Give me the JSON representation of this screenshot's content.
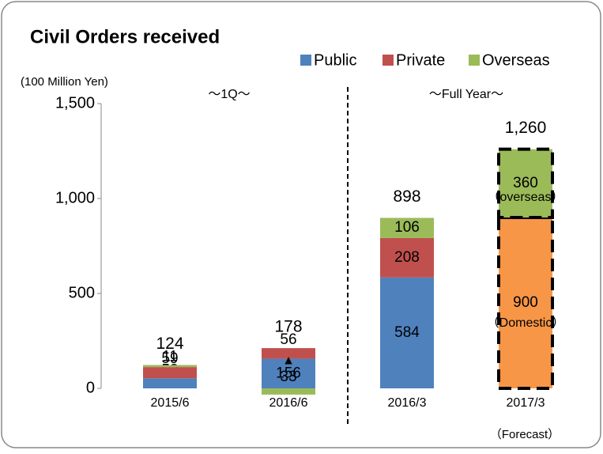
{
  "chart_data": {
    "type": "bar",
    "title": "Civil Orders received",
    "y_label": "(100 Million Yen)",
    "categories": [
      "2015/6",
      "2016/6",
      "2016/3",
      "2017/3"
    ],
    "series": [
      {
        "name": "Public",
        "color": "#4f81bd",
        "values": [
          53,
          156,
          584,
          null
        ],
        "value_labels": [
          "53",
          "156",
          "584",
          null
        ]
      },
      {
        "name": "Private",
        "color": "#c0504d",
        "values": [
          59,
          56,
          208,
          null
        ],
        "value_labels": [
          "59",
          "56",
          "208",
          null
        ]
      },
      {
        "name": "Overseas",
        "color": "#9bbb59",
        "values": [
          11,
          -33,
          106,
          360
        ],
        "value_labels": [
          "11",
          "33",
          "106",
          "360"
        ]
      }
    ],
    "domestic": {
      "color": "#f79646",
      "values": [
        null,
        null,
        null,
        900
      ],
      "value_labels": [
        null,
        null,
        null,
        "900"
      ]
    },
    "totals": {
      "values": [
        124,
        178,
        898,
        1260
      ],
      "value_labels": [
        "124",
        "178",
        "898",
        "1,260"
      ]
    },
    "annotations": {
      "negative_marker": "▲",
      "domestic": "（Domestic）",
      "overseas": "（overseas）",
      "forecast": "（Forecast）",
      "period_1q": "～1Q～",
      "period_full": "～Full Year～"
    },
    "ylim": [
      0,
      1500
    ],
    "yticks": [
      0,
      500,
      {
        "value": 1000,
        "label": "1,000"
      },
      {
        "value": 1500,
        "label": "1,500"
      }
    ],
    "grid": false,
    "legend": "top-right"
  }
}
